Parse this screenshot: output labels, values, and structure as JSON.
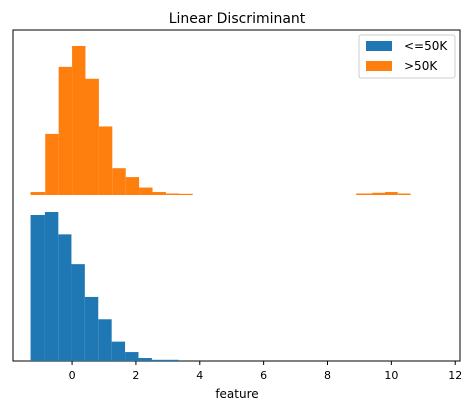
{
  "chart_data": {
    "type": "bar",
    "title": "Linear Discriminant",
    "xlabel": "feature",
    "ylabel": "",
    "xlim": [
      -1.85,
      12.15
    ],
    "x_ticks": [
      {
        "value": 0,
        "label": "0"
      },
      {
        "value": 2,
        "label": "2"
      },
      {
        "value": 4,
        "label": "4"
      },
      {
        "value": 6,
        "label": "6"
      },
      {
        "value": 8,
        "label": "8"
      },
      {
        "value": 10,
        "label": "10"
      },
      {
        "value": 12,
        "label": "12"
      }
    ],
    "y_ticks_visible": false,
    "grid": false,
    "legend": {
      "placement": "top-right"
    },
    "series": [
      {
        "name": "<=50K",
        "color": "#1f77b4",
        "panel": "bottom",
        "bins": [
          {
            "x0": -1.3,
            "x1": -0.85,
            "height": 0.98
          },
          {
            "x0": -0.85,
            "x1": -0.43,
            "height": 1.0
          },
          {
            "x0": -0.43,
            "x1": -0.02,
            "height": 0.85
          },
          {
            "x0": -0.02,
            "x1": 0.4,
            "height": 0.65
          },
          {
            "x0": 0.4,
            "x1": 0.82,
            "height": 0.43
          },
          {
            "x0": 0.82,
            "x1": 1.24,
            "height": 0.28
          },
          {
            "x0": 1.24,
            "x1": 1.66,
            "height": 0.13
          },
          {
            "x0": 1.66,
            "x1": 2.08,
            "height": 0.06
          },
          {
            "x0": 2.08,
            "x1": 2.5,
            "height": 0.02
          },
          {
            "x0": 2.5,
            "x1": 2.92,
            "height": 0.007
          },
          {
            "x0": 2.92,
            "x1": 3.34,
            "height": 0.003
          }
        ]
      },
      {
        "name": ">50K",
        "color": "#ff7f0e",
        "panel": "top",
        "bins": [
          {
            "x0": -1.3,
            "x1": -0.84,
            "height": 0.02
          },
          {
            "x0": -0.84,
            "x1": -0.42,
            "height": 0.41
          },
          {
            "x0": -0.42,
            "x1": 0.0,
            "height": 0.86
          },
          {
            "x0": 0.0,
            "x1": 0.42,
            "height": 1.0
          },
          {
            "x0": 0.42,
            "x1": 0.84,
            "height": 0.78
          },
          {
            "x0": 0.84,
            "x1": 1.26,
            "height": 0.46
          },
          {
            "x0": 1.26,
            "x1": 1.68,
            "height": 0.18
          },
          {
            "x0": 1.68,
            "x1": 2.1,
            "height": 0.12
          },
          {
            "x0": 2.1,
            "x1": 2.52,
            "height": 0.05
          },
          {
            "x0": 2.52,
            "x1": 2.94,
            "height": 0.02
          },
          {
            "x0": 2.94,
            "x1": 3.36,
            "height": 0.01
          },
          {
            "x0": 3.36,
            "x1": 3.78,
            "height": 0.005
          },
          {
            "x0": 8.9,
            "x1": 9.4,
            "height": 0.01
          },
          {
            "x0": 9.4,
            "x1": 9.8,
            "height": 0.015
          },
          {
            "x0": 9.8,
            "x1": 10.2,
            "height": 0.02
          },
          {
            "x0": 10.2,
            "x1": 10.6,
            "height": 0.01
          }
        ]
      }
    ]
  }
}
